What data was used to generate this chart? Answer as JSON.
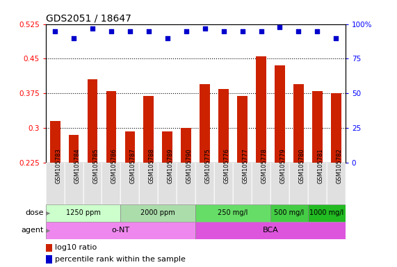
{
  "title": "GDS2051 / 18647",
  "samples": [
    "GSM105783",
    "GSM105784",
    "GSM105785",
    "GSM105786",
    "GSM105787",
    "GSM105788",
    "GSM105789",
    "GSM105790",
    "GSM105775",
    "GSM105776",
    "GSM105777",
    "GSM105778",
    "GSM105779",
    "GSM105780",
    "GSM105781",
    "GSM105782"
  ],
  "bar_values": [
    0.315,
    0.285,
    0.405,
    0.38,
    0.293,
    0.37,
    0.293,
    0.3,
    0.395,
    0.385,
    0.37,
    0.455,
    0.435,
    0.395,
    0.38,
    0.375
  ],
  "scatter_pct": [
    95,
    90,
    97,
    95,
    95,
    95,
    90,
    95,
    97,
    95,
    95,
    95,
    98,
    95,
    95,
    90
  ],
  "bar_color": "#cc2200",
  "scatter_color": "#0000cc",
  "ylim_left": [
    0.225,
    0.525
  ],
  "yticks_left": [
    0.225,
    0.3,
    0.375,
    0.45,
    0.525
  ],
  "ytick_labels_left": [
    "0.225",
    "0.3",
    "0.375",
    "0.45",
    "0.525"
  ],
  "ylim_right": [
    0,
    100
  ],
  "yticks_right": [
    0,
    25,
    50,
    75,
    100
  ],
  "ytick_labels_right": [
    "0",
    "25",
    "50",
    "75",
    "100%"
  ],
  "dose_groups": [
    {
      "label": "1250 ppm",
      "start": 0,
      "end": 4,
      "color": "#ccffcc"
    },
    {
      "label": "2000 ppm",
      "start": 4,
      "end": 8,
      "color": "#aaddaa"
    },
    {
      "label": "250 mg/l",
      "start": 8,
      "end": 12,
      "color": "#66dd66"
    },
    {
      "label": "500 mg/l",
      "start": 12,
      "end": 14,
      "color": "#44cc44"
    },
    {
      "label": "1000 mg/l",
      "start": 14,
      "end": 16,
      "color": "#22bb22"
    }
  ],
  "agent_groups": [
    {
      "label": "o-NT",
      "start": 0,
      "end": 8,
      "color": "#ee88ee"
    },
    {
      "label": "BCA",
      "start": 8,
      "end": 16,
      "color": "#dd55dd"
    }
  ],
  "legend_bar_label": "log10 ratio",
  "legend_scatter_label": "percentile rank within the sample",
  "title_fontsize": 10,
  "tick_fontsize": 7.5,
  "sample_fontsize": 6,
  "row_label_fontsize": 8
}
